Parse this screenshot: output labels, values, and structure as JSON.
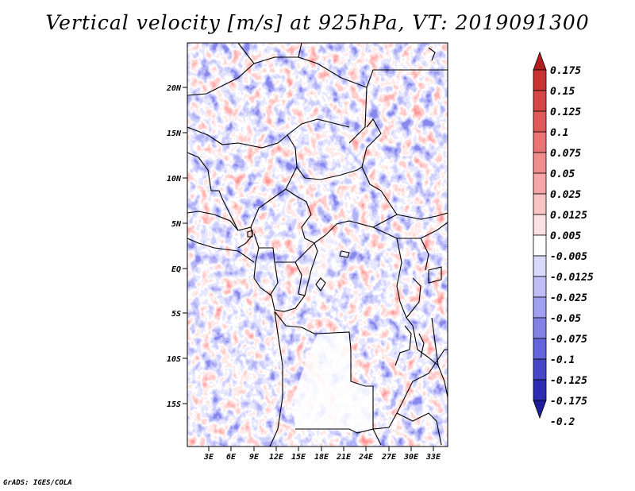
{
  "title": "Vertical velocity [m/s] at 925hPa, VT: 2019091300",
  "footer": "GrADS: IGES/COLA",
  "map": {
    "region": "Central Africa",
    "lat_ticks": [
      "20N",
      "15N",
      "10N",
      "5N",
      "EQ",
      "5S",
      "10S",
      "15S"
    ],
    "lon_ticks": [
      "3E",
      "6E",
      "9E",
      "12E",
      "15E",
      "18E",
      "21E",
      "24E",
      "27E",
      "30E",
      "33E"
    ]
  },
  "colorbar": {
    "labels": [
      "0.175",
      "0.15",
      "0.125",
      "0.1",
      "0.075",
      "0.05",
      "0.025",
      "0.0125",
      "0.005",
      "-0.005",
      "-0.0125",
      "-0.025",
      "-0.05",
      "-0.075",
      "-0.1",
      "-0.125",
      "-0.175",
      "-0.2"
    ],
    "colors": [
      "#b41e1e",
      "#c83232",
      "#d74646",
      "#e15a5a",
      "#eb7373",
      "#f08c8c",
      "#f5a5a5",
      "#f8c3c3",
      "#fce1e1",
      "#ffffff",
      "#d8d8fa",
      "#bebef5",
      "#a0a0f0",
      "#8282e6",
      "#6464dc",
      "#4646c8",
      "#2d2db4",
      "#1e1e9b"
    ]
  }
}
